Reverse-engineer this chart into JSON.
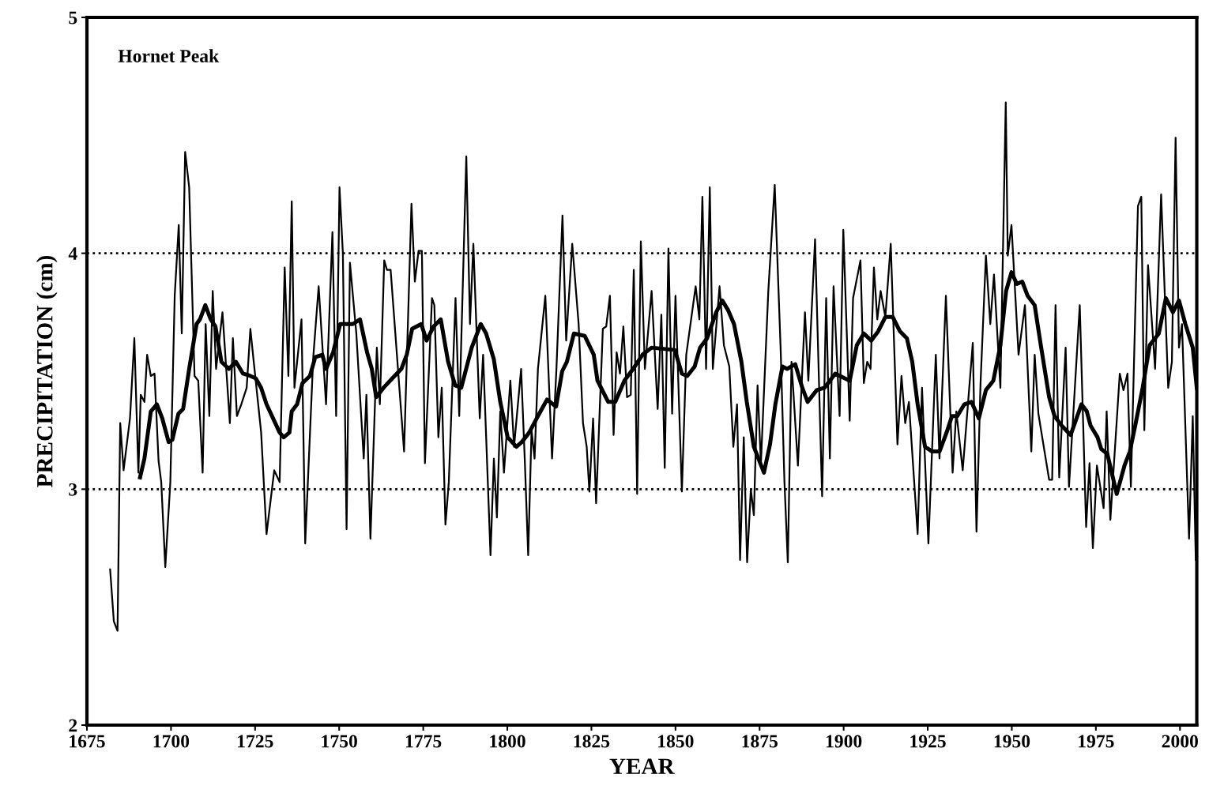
{
  "chart_data": {
    "type": "line",
    "xlabel": "YEAR",
    "ylabel": "PRECIPITATION (cm)",
    "annotations": [
      "Hornet Peak"
    ],
    "xlim": [
      1675,
      2005
    ],
    "xticks": [
      1675,
      1700,
      1725,
      1750,
      1775,
      1800,
      1825,
      1850,
      1875,
      1900,
      1925,
      1950,
      1975,
      2000
    ],
    "ylim": [
      2,
      5
    ],
    "yticks": [
      2,
      3,
      4,
      5
    ],
    "grid": false,
    "marker": "none",
    "line_style": "solid",
    "ref_lines": [
      {
        "axis": "y",
        "value": 3,
        "color": "#000000",
        "line_style": "dotted"
      },
      {
        "axis": "y",
        "value": 4,
        "color": "#000000",
        "line_style": "dotted"
      }
    ],
    "series": [
      {
        "color": "#000000",
        "x": [
          1681.9,
          1683,
          1684.1,
          1684.9,
          1685.9,
          1687.8,
          1689.1,
          1690.3,
          1691,
          1692.1,
          1692.9,
          1694,
          1695.1,
          1696.3,
          1697.1,
          1698.3,
          1699.8,
          1701.1,
          1702.3,
          1703.2,
          1704.2,
          1705.4,
          1707,
          1708.1,
          1709.4,
          1710.3,
          1711.4,
          1712.4,
          1713.4,
          1715.3,
          1717.5,
          1718.4,
          1719.6,
          1720.9,
          1722.5,
          1723.6,
          1724.6,
          1726.8,
          1728.4,
          1730.7,
          1732.3,
          1733.8,
          1734.9,
          1735.9,
          1736.7,
          1738.8,
          1739.9,
          1742.3,
          1743.9,
          1746.1,
          1748,
          1749.1,
          1750.1,
          1751.1,
          1752.2,
          1753.2,
          1755.1,
          1757.3,
          1758.1,
          1759.3,
          1761.2,
          1762.1,
          1763.4,
          1764.2,
          1765.3,
          1769.3,
          1771.5,
          1772.5,
          1773.6,
          1774.6,
          1775.5,
          1777.6,
          1778.3,
          1779.5,
          1780.5,
          1781.6,
          1782.6,
          1784.6,
          1785.7,
          1787.8,
          1788.9,
          1789.9,
          1791.8,
          1792.8,
          1795,
          1796,
          1796.9,
          1797.9,
          1799,
          1800.9,
          1802,
          1804.1,
          1805.2,
          1806.2,
          1807.2,
          1808.1,
          1809.1,
          1811.3,
          1813.3,
          1814.6,
          1816.4,
          1817.5,
          1819.3,
          1821.2,
          1822.5,
          1823.6,
          1824.4,
          1825.5,
          1826.4,
          1828.4,
          1829.4,
          1830.5,
          1831.6,
          1832.5,
          1833.5,
          1834.5,
          1835.6,
          1836.7,
          1837.6,
          1838.6,
          1839.7,
          1840.9,
          1842.9,
          1844.7,
          1845.8,
          1846.8,
          1847.9,
          1849,
          1850,
          1851.9,
          1853.2,
          1856,
          1857.1,
          1858,
          1859.1,
          1860.2,
          1861.1,
          1863.1,
          1864.4,
          1866,
          1867.2,
          1868.3,
          1869.2,
          1870.3,
          1871.3,
          1872.4,
          1873.3,
          1874.4,
          1875.4,
          1877.6,
          1879.5,
          1881.3,
          1882.4,
          1883.4,
          1884.5,
          1886.4,
          1888.5,
          1889.5,
          1891.5,
          1893.6,
          1894.8,
          1895.9,
          1897,
          1898.8,
          1899.9,
          1901.8,
          1902.8,
          1905,
          1906,
          1907,
          1908,
          1909,
          1910,
          1911,
          1912.4,
          1914,
          1916,
          1917.2,
          1918.3,
          1919.4,
          1922,
          1923.3,
          1925.2,
          1927.4,
          1928.5,
          1930.4,
          1932.4,
          1933.5,
          1935.4,
          1938.4,
          1939.5,
          1940.7,
          1942.3,
          1943.6,
          1944.7,
          1946.6,
          1948.2,
          1948.8,
          1949.9,
          1952,
          1953.9,
          1955.8,
          1956.8,
          1957.9,
          1961.1,
          1962,
          1963,
          1964.1,
          1966,
          1967,
          1970.2,
          1972.1,
          1973.1,
          1974.1,
          1975.3,
          1977.3,
          1978.2,
          1979.3,
          1982.1,
          1983.2,
          1984.4,
          1985.4,
          1987.5,
          1988.5,
          1989.4,
          1990.5,
          1992.6,
          1994.4,
          1996.5,
          1997.6,
          1998.7,
          1999.7,
          2000.6,
          2002.7,
          2003.8,
          2004.7
        ],
        "values": [
          2.66,
          2.44,
          2.4,
          3.28,
          3.08,
          3.3,
          3.64,
          3.07,
          3.4,
          3.37,
          3.57,
          3.48,
          3.49,
          3.12,
          3.03,
          2.67,
          3.03,
          3.82,
          4.12,
          3.66,
          4.43,
          4.28,
          3.48,
          3.46,
          3.07,
          3.7,
          3.31,
          3.84,
          3.51,
          3.75,
          3.28,
          3.64,
          3.31,
          3.36,
          3.43,
          3.68,
          3.54,
          3.24,
          2.81,
          3.08,
          3.03,
          3.94,
          3.48,
          4.22,
          3.43,
          3.72,
          2.77,
          3.56,
          3.86,
          3.36,
          4.09,
          3.31,
          4.28,
          4.0,
          2.83,
          3.96,
          3.66,
          3.13,
          3.4,
          2.79,
          3.6,
          3.36,
          3.97,
          3.93,
          3.93,
          3.16,
          4.21,
          3.88,
          4.01,
          4.01,
          3.11,
          3.81,
          3.78,
          3.22,
          3.43,
          2.85,
          3.03,
          3.81,
          3.31,
          4.41,
          3.7,
          4.04,
          3.3,
          3.57,
          2.72,
          3.13,
          2.88,
          3.33,
          3.07,
          3.46,
          3.18,
          3.51,
          3.12,
          2.72,
          3.25,
          3.13,
          3.51,
          3.82,
          3.13,
          3.51,
          4.16,
          3.63,
          4.04,
          3.7,
          3.28,
          3.18,
          2.99,
          3.3,
          2.94,
          3.68,
          3.69,
          3.82,
          3.23,
          3.58,
          3.49,
          3.69,
          3.39,
          3.4,
          3.93,
          2.98,
          4.05,
          3.51,
          3.84,
          3.34,
          3.74,
          3.09,
          4.02,
          3.32,
          3.82,
          2.99,
          3.57,
          3.86,
          3.72,
          4.24,
          3.51,
          4.28,
          3.51,
          3.86,
          3.61,
          3.52,
          3.18,
          3.36,
          2.7,
          3.22,
          2.69,
          3.0,
          2.89,
          3.44,
          3.11,
          3.84,
          4.29,
          3.58,
          3.03,
          2.69,
          3.54,
          3.1,
          3.75,
          3.46,
          4.06,
          2.97,
          3.81,
          3.13,
          3.86,
          3.31,
          4.1,
          3.29,
          3.81,
          3.97,
          3.45,
          3.54,
          3.51,
          3.94,
          3.72,
          3.84,
          3.73,
          4.04,
          3.19,
          3.48,
          3.28,
          3.37,
          2.81,
          3.43,
          2.77,
          3.57,
          3.13,
          3.82,
          3.07,
          3.33,
          3.08,
          3.62,
          2.82,
          3.45,
          3.99,
          3.7,
          3.91,
          3.43,
          4.64,
          3.99,
          4.12,
          3.57,
          3.78,
          3.16,
          3.57,
          3.32,
          3.04,
          3.04,
          3.78,
          3.05,
          3.6,
          3.01,
          3.78,
          2.84,
          3.11,
          2.75,
          3.1,
          2.92,
          3.33,
          2.87,
          3.49,
          3.42,
          3.49,
          3.01,
          4.2,
          4.24,
          3.25,
          3.95,
          3.51,
          4.25,
          3.43,
          3.54,
          4.49,
          3.6,
          3.7,
          2.79,
          3.31,
          2.7
        ]
      },
      {
        "color": "#000000",
        "x": [
          1690.8,
          1692.1,
          1694,
          1695.8,
          1697.4,
          1699.3,
          1700.4,
          1702.2,
          1703.6,
          1705.4,
          1707.6,
          1708.6,
          1710.2,
          1711.8,
          1713.2,
          1715,
          1717.2,
          1719.3,
          1721.4,
          1723.6,
          1725.2,
          1726.8,
          1728.4,
          1732.3,
          1733.5,
          1735.2,
          1735.9,
          1737.5,
          1739.1,
          1741.3,
          1742.9,
          1745,
          1746.1,
          1748.2,
          1750.3,
          1754.1,
          1756.2,
          1758.3,
          1759.7,
          1761,
          1763.2,
          1765.8,
          1768.5,
          1770.1,
          1771.7,
          1774.4,
          1776,
          1778.1,
          1780.2,
          1782.4,
          1784.5,
          1786.3,
          1789.4,
          1792.1,
          1793.7,
          1796,
          1797.9,
          1800.1,
          1802.7,
          1804.3,
          1806.5,
          1809.1,
          1811.8,
          1814.5,
          1816.3,
          1817.7,
          1819.8,
          1823,
          1825.7,
          1826.8,
          1830,
          1832.1,
          1834.8,
          1837.4,
          1840.2,
          1842.9,
          1849.8,
          1851.9,
          1853.5,
          1855.7,
          1857.3,
          1859.4,
          1862.1,
          1863.9,
          1865.6,
          1867.4,
          1869.6,
          1871.2,
          1873.3,
          1876.3,
          1878.1,
          1879.7,
          1881.8,
          1883.2,
          1885.6,
          1887.7,
          1889.3,
          1892,
          1894.3,
          1897.5,
          1901.8,
          1903.9,
          1906,
          1908.2,
          1910.3,
          1912.4,
          1914.6,
          1916.7,
          1918.8,
          1920.4,
          1922,
          1924.2,
          1926.3,
          1928.5,
          1930.6,
          1932.2,
          1933.8,
          1935.9,
          1938,
          1940.2,
          1942.3,
          1944.5,
          1946.6,
          1948.3,
          1949.9,
          1951.5,
          1953.1,
          1954.7,
          1956.8,
          1958.4,
          1961.1,
          1962.7,
          1964.8,
          1967.5,
          1970.7,
          1972.3,
          1973.4,
          1975.5,
          1976.6,
          1978.4,
          1981.2,
          1983.5,
          1985.1,
          1986.7,
          1988.9,
          1991,
          1993.7,
          1995.8,
          1997.9,
          1999.7,
          2001.6,
          2003.8,
          2005
        ],
        "values": [
          3.05,
          3.13,
          3.33,
          3.36,
          3.3,
          3.2,
          3.21,
          3.32,
          3.34,
          3.51,
          3.7,
          3.72,
          3.78,
          3.72,
          3.69,
          3.54,
          3.51,
          3.54,
          3.49,
          3.48,
          3.47,
          3.43,
          3.36,
          3.24,
          3.22,
          3.24,
          3.33,
          3.36,
          3.45,
          3.48,
          3.56,
          3.57,
          3.51,
          3.58,
          3.7,
          3.7,
          3.72,
          3.58,
          3.51,
          3.39,
          3.43,
          3.47,
          3.51,
          3.57,
          3.68,
          3.7,
          3.63,
          3.69,
          3.72,
          3.54,
          3.44,
          3.43,
          3.6,
          3.7,
          3.66,
          3.55,
          3.37,
          3.22,
          3.18,
          3.2,
          3.24,
          3.31,
          3.38,
          3.35,
          3.5,
          3.54,
          3.66,
          3.65,
          3.57,
          3.46,
          3.37,
          3.37,
          3.46,
          3.51,
          3.57,
          3.6,
          3.59,
          3.49,
          3.48,
          3.52,
          3.6,
          3.64,
          3.75,
          3.8,
          3.76,
          3.7,
          3.54,
          3.37,
          3.18,
          3.07,
          3.19,
          3.36,
          3.52,
          3.51,
          3.53,
          3.43,
          3.37,
          3.42,
          3.43,
          3.49,
          3.46,
          3.61,
          3.66,
          3.63,
          3.67,
          3.73,
          3.73,
          3.67,
          3.64,
          3.54,
          3.36,
          3.18,
          3.16,
          3.16,
          3.24,
          3.31,
          3.31,
          3.36,
          3.37,
          3.3,
          3.42,
          3.46,
          3.61,
          3.84,
          3.92,
          3.87,
          3.88,
          3.82,
          3.78,
          3.63,
          3.39,
          3.31,
          3.27,
          3.23,
          3.36,
          3.33,
          3.27,
          3.22,
          3.17,
          3.15,
          2.98,
          3.1,
          3.16,
          3.27,
          3.43,
          3.61,
          3.66,
          3.81,
          3.75,
          3.8,
          3.7,
          3.6,
          3.43
        ]
      }
    ]
  }
}
